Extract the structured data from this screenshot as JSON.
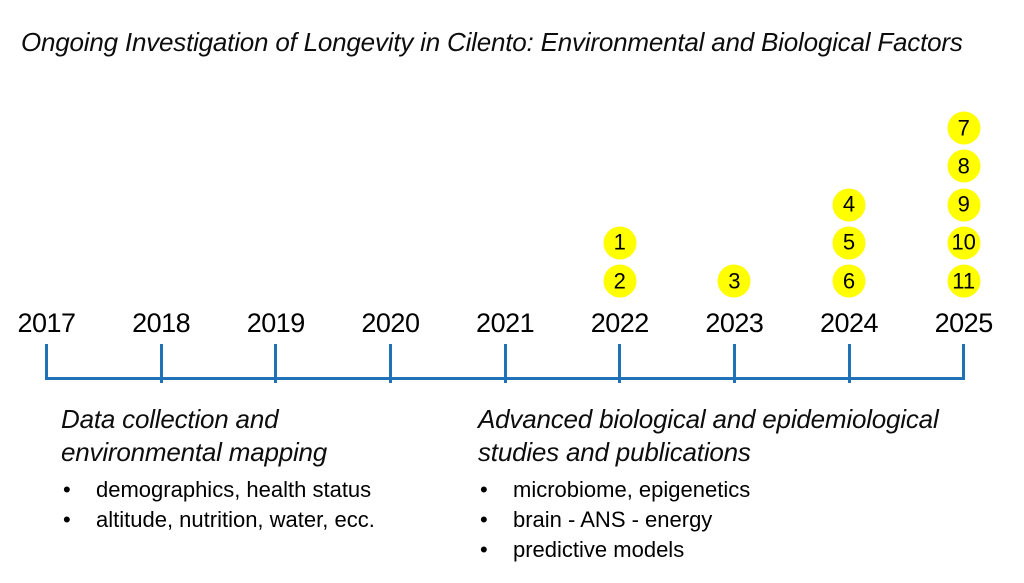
{
  "title": "Ongoing Investigation of Longevity in Cilento: Environmental and Biological Factors",
  "timeline": {
    "years": [
      "2017",
      "2018",
      "2019",
      "2020",
      "2021",
      "2022",
      "2023",
      "2024",
      "2025"
    ],
    "line_color": "#1F72B8",
    "marker_fill_color": "#FFFF00",
    "marker_text_color": "#000000",
    "markers_by_year": [
      {
        "year": "2022",
        "labels": [
          "1",
          "2"
        ]
      },
      {
        "year": "2023",
        "labels": [
          "3"
        ]
      },
      {
        "year": "2024",
        "labels": [
          "4",
          "5",
          "6"
        ]
      },
      {
        "year": "2025",
        "labels": [
          "7",
          "8",
          "9",
          "10",
          "11"
        ]
      }
    ]
  },
  "phases": [
    {
      "heading": "Data collection and environmental mapping",
      "heading_lines": [
        "Data collection and",
        "environmental mapping"
      ],
      "bullets": [
        "demographics, health status",
        "altitude, nutrition, water, ecc."
      ]
    },
    {
      "heading": "Advanced biological and epidemiological studies and publications",
      "heading_lines": [
        "Advanced biological and epidemiological",
        "studies and publications"
      ],
      "bullets": [
        "microbiome, epigenetics",
        "brain - ANS - energy",
        "predictive models"
      ]
    }
  ]
}
